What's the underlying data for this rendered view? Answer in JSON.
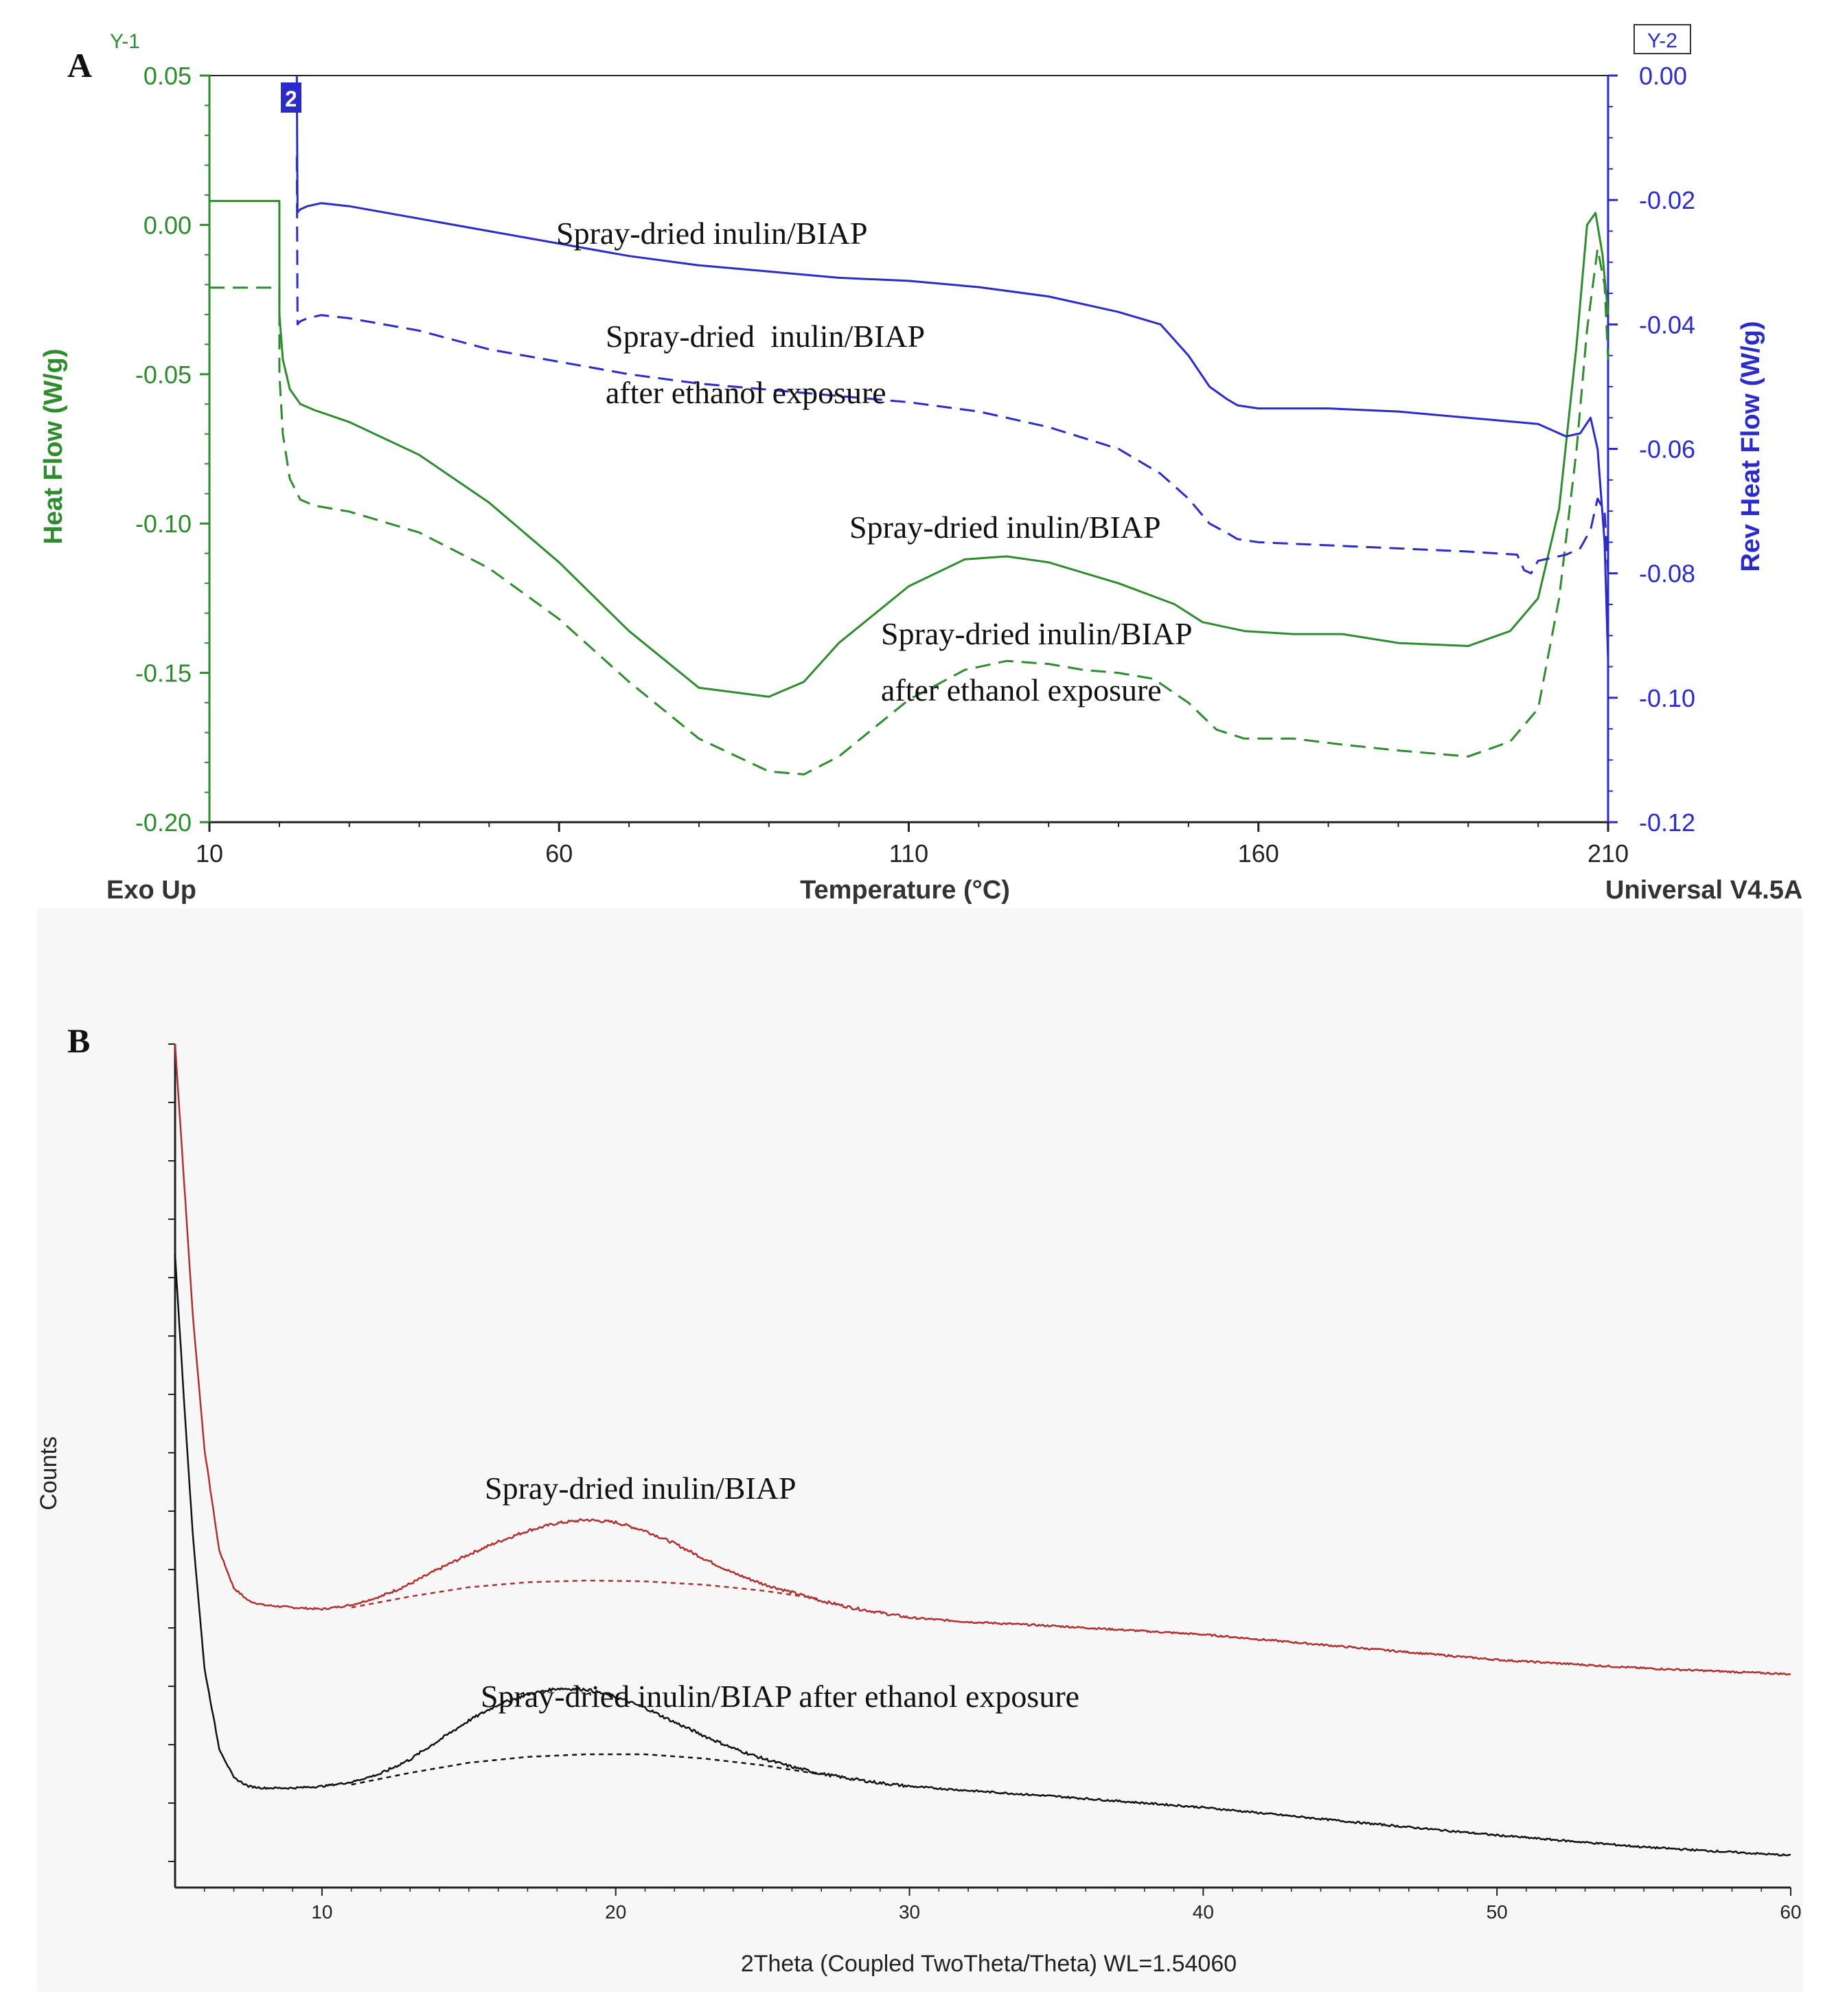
{
  "colors": {
    "green": "#2e8b2e",
    "blue": "#2b2bc8",
    "red": "#b03030",
    "black": "#111111",
    "axis_dark": "#333333",
    "panel_b_bg": "#f7f7f7"
  },
  "chart_data": [
    {
      "type": "line",
      "panel_label": "A",
      "title": "",
      "xlabel": "Temperature (°C)",
      "xlim": [
        10,
        210
      ],
      "x_ticks": [
        "10",
        "60",
        "110",
        "160",
        "210"
      ],
      "y1": {
        "marker": "Y-1",
        "label": "Heat Flow (W/g)",
        "ylim": [
          -0.2,
          0.05
        ],
        "ticks": [
          "0.05",
          "0.00",
          "-0.05",
          "-0.10",
          "-0.15",
          "-0.20"
        ]
      },
      "y2": {
        "marker": "Y-2",
        "label": "Rev Heat Flow (W/g)",
        "ylim": [
          -0.12,
          0.0
        ],
        "ticks": [
          "0.00",
          "-0.02",
          "-0.04",
          "-0.06",
          "-0.08",
          "-0.10",
          "-0.12"
        ]
      },
      "footer_left": "Exo Up",
      "footer_right": "Universal V4.5A",
      "cursor_marker": "2",
      "series": [
        {
          "name": "Spray-dried inulin/BIAP (Heat Flow)",
          "axis": "y1",
          "style": "solid",
          "color": "green",
          "x": [
            10,
            20,
            20,
            20.5,
            21.5,
            23,
            25,
            30,
            40,
            50,
            60,
            70,
            80,
            90,
            95,
            100,
            110,
            118,
            124,
            130,
            140,
            148,
            152,
            158,
            165,
            172,
            180,
            190,
            196,
            200,
            203,
            205.5,
            207,
            208.2,
            209.2,
            210
          ],
          "y": [
            0.008,
            0.008,
            -0.03,
            -0.045,
            -0.055,
            -0.06,
            -0.062,
            -0.066,
            -0.077,
            -0.093,
            -0.113,
            -0.136,
            -0.155,
            -0.158,
            -0.153,
            -0.14,
            -0.121,
            -0.112,
            -0.111,
            -0.113,
            -0.12,
            -0.127,
            -0.133,
            -0.136,
            -0.137,
            -0.137,
            -0.14,
            -0.141,
            -0.136,
            -0.125,
            -0.095,
            -0.04,
            0.0,
            0.004,
            -0.01,
            -0.03
          ]
        },
        {
          "name": "Spray-dried inulin/BIAP after ethanol exposure (Heat Flow)",
          "axis": "y1",
          "style": "dashed",
          "color": "green",
          "x": [
            10,
            20,
            20,
            20.5,
            21.5,
            23,
            25,
            30,
            40,
            50,
            60,
            70,
            80,
            90,
            95,
            100,
            110,
            118,
            124,
            130,
            135,
            140,
            145,
            150,
            154,
            158,
            165,
            172,
            180,
            190,
            196,
            200,
            203,
            205.5,
            207,
            208.5,
            209.5,
            210
          ],
          "y": [
            -0.021,
            -0.021,
            -0.05,
            -0.07,
            -0.085,
            -0.092,
            -0.094,
            -0.096,
            -0.103,
            -0.115,
            -0.132,
            -0.153,
            -0.172,
            -0.183,
            -0.184,
            -0.178,
            -0.159,
            -0.149,
            -0.146,
            -0.147,
            -0.149,
            -0.15,
            -0.152,
            -0.16,
            -0.169,
            -0.172,
            -0.172,
            -0.174,
            -0.176,
            -0.178,
            -0.173,
            -0.162,
            -0.125,
            -0.075,
            -0.035,
            -0.008,
            -0.02,
            -0.045
          ]
        },
        {
          "name": "Spray-dried inulin/BIAP (Rev Heat Flow)",
          "axis": "y2",
          "style": "solid",
          "color": "blue",
          "x": [
            22.5,
            22.6,
            23,
            24,
            26,
            30,
            40,
            50,
            60,
            70,
            80,
            90,
            100,
            110,
            120,
            130,
            140,
            146,
            150,
            153,
            155.5,
            157,
            160,
            170,
            180,
            190,
            200,
            203,
            204,
            206,
            207.5,
            208.5,
            209.5,
            210
          ],
          "y": [
            0.0,
            -0.022,
            -0.0215,
            -0.021,
            -0.0205,
            -0.021,
            -0.023,
            -0.025,
            -0.027,
            -0.029,
            -0.0305,
            -0.0315,
            -0.0325,
            -0.033,
            -0.034,
            -0.0355,
            -0.038,
            -0.04,
            -0.045,
            -0.05,
            -0.052,
            -0.053,
            -0.0535,
            -0.0535,
            -0.054,
            -0.055,
            -0.056,
            -0.0575,
            -0.058,
            -0.0575,
            -0.055,
            -0.06,
            -0.075,
            -0.094
          ]
        },
        {
          "name": "Spray-dried inulin/BIAP after ethanol exposure (Rev Heat Flow)",
          "axis": "y2",
          "style": "dashed",
          "color": "blue",
          "x": [
            22.5,
            22.6,
            23,
            24,
            26,
            30,
            40,
            50,
            60,
            70,
            80,
            90,
            100,
            110,
            120,
            130,
            140,
            146,
            150,
            153,
            155.5,
            157,
            160,
            170,
            180,
            190,
            197,
            198,
            199,
            200,
            202,
            204,
            206,
            207.5,
            208.5,
            209.5,
            210
          ],
          "y": [
            -0.013,
            -0.04,
            -0.0395,
            -0.039,
            -0.0385,
            -0.039,
            -0.041,
            -0.044,
            -0.046,
            -0.048,
            -0.0495,
            -0.0505,
            -0.0515,
            -0.0525,
            -0.054,
            -0.0565,
            -0.06,
            -0.064,
            -0.068,
            -0.072,
            -0.0735,
            -0.0745,
            -0.075,
            -0.0755,
            -0.076,
            -0.0765,
            -0.077,
            -0.0795,
            -0.08,
            -0.078,
            -0.0775,
            -0.077,
            -0.076,
            -0.073,
            -0.068,
            -0.07,
            -0.08
          ]
        }
      ],
      "annotations": [
        {
          "text": "Spray-dried inulin/BIAP",
          "target": "Rev Heat Flow, solid"
        },
        {
          "text": "Spray-dried  inulin/BIAP",
          "text2": "after ethanol exposure",
          "target": "Rev Heat Flow, dashed"
        },
        {
          "text": "Spray-dried inulin/BIAP",
          "target": "Heat Flow, solid"
        },
        {
          "text": "Spray-dried inulin/BIAP",
          "text2": "after ethanol exposure",
          "target": "Heat Flow, dashed"
        }
      ]
    },
    {
      "type": "line",
      "panel_label": "B",
      "title": "",
      "xlabel": "2Theta (Coupled TwoTheta/Theta) WL=1.54060",
      "ylabel": "Counts",
      "xlim": [
        5,
        60
      ],
      "x_ticks": [
        "10",
        "20",
        "30",
        "40",
        "50",
        "60"
      ],
      "y_ticks_labeled": false,
      "ylim": [
        0,
        100
      ],
      "series": [
        {
          "name": "Spray-dried inulin/BIAP",
          "style": "solid",
          "color": "red",
          "x": [
            5.0,
            5.3,
            5.6,
            6.0,
            6.5,
            7.0,
            7.5,
            8.0,
            9.0,
            10.0,
            11.0,
            12.0,
            13.0,
            14.0,
            15.0,
            16.0,
            17.0,
            18.0,
            19.0,
            20.0,
            21.0,
            22.0,
            23.0,
            24.0,
            25.0,
            26.0,
            27.0,
            28.0,
            29.0,
            30.0,
            32.0,
            35.0,
            40.0,
            45.0,
            50.0,
            55.0,
            60.0
          ],
          "y": [
            100.0,
            84.0,
            68.0,
            52.0,
            40.0,
            35.5,
            34.0,
            33.5,
            33.2,
            33.0,
            33.5,
            34.5,
            36.0,
            37.8,
            39.5,
            41.0,
            42.3,
            43.2,
            43.6,
            43.3,
            42.3,
            40.8,
            39.0,
            37.3,
            36.0,
            35.0,
            34.0,
            33.2,
            32.6,
            32.0,
            31.5,
            31.0,
            30.0,
            28.5,
            27.0,
            26.0,
            25.3
          ]
        },
        {
          "name": "Spray-dried inulin/BIAP amorphous baseline",
          "style": "dotted",
          "color": "red",
          "x": [
            11,
            13,
            15,
            17,
            19,
            21,
            23,
            25,
            27
          ],
          "y": [
            33.2,
            34.5,
            35.6,
            36.2,
            36.4,
            36.3,
            35.9,
            35.2,
            34.2
          ]
        },
        {
          "name": "Spray-dried inulin/BIAP after ethanol exposure",
          "style": "solid",
          "color": "black",
          "x": [
            5.0,
            5.3,
            5.6,
            6.0,
            6.5,
            7.0,
            7.5,
            8.0,
            9.0,
            10.0,
            11.0,
            12.0,
            13.0,
            14.0,
            15.0,
            16.0,
            17.0,
            18.0,
            19.0,
            20.0,
            21.0,
            22.0,
            23.0,
            24.0,
            25.0,
            26.0,
            27.0,
            28.0,
            29.0,
            30.0,
            32.0,
            35.0,
            40.0,
            45.0,
            50.0,
            55.0,
            60.0
          ],
          "y": [
            75.0,
            58.0,
            42.0,
            26.0,
            16.5,
            13.0,
            12.0,
            11.8,
            11.8,
            12.0,
            12.5,
            13.5,
            15.2,
            17.5,
            19.8,
            21.7,
            22.9,
            23.6,
            23.5,
            22.6,
            21.3,
            19.6,
            18.0,
            16.5,
            15.3,
            14.3,
            13.5,
            12.9,
            12.4,
            12.0,
            11.5,
            10.8,
            9.5,
            7.8,
            6.2,
            4.8,
            3.8
          ]
        },
        {
          "name": "Spray-dried inulin/BIAP after ethanol exposure amorphous baseline",
          "style": "dotted",
          "color": "black",
          "x": [
            11,
            13,
            15,
            17,
            19,
            21,
            23,
            25,
            27
          ],
          "y": [
            12.2,
            13.6,
            14.8,
            15.5,
            15.8,
            15.8,
            15.3,
            14.5,
            13.4
          ]
        }
      ],
      "annotations": [
        {
          "text": "Spray-dried inulin/BIAP",
          "target": "red"
        },
        {
          "text": "Spray-dried inulin/BIAP after ethanol exposure",
          "target": "black"
        }
      ]
    }
  ]
}
